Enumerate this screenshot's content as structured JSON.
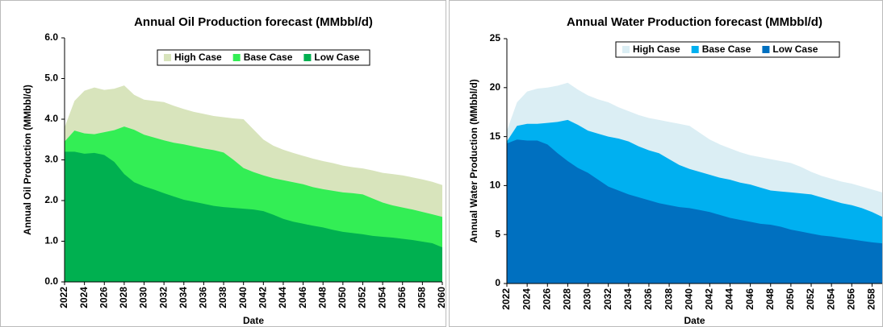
{
  "chart_data": [
    {
      "type": "area",
      "title": "Annual Oil Production forecast (MMbbl/d)",
      "x_label": "Date",
      "y_label": "Annual Oil Production (MMbbl/d)",
      "x": [
        2022,
        2023,
        2024,
        2025,
        2026,
        2027,
        2028,
        2029,
        2030,
        2031,
        2032,
        2033,
        2034,
        2035,
        2036,
        2037,
        2038,
        2039,
        2040,
        2041,
        2042,
        2043,
        2044,
        2045,
        2046,
        2047,
        2048,
        2049,
        2050,
        2051,
        2052,
        2053,
        2054,
        2055,
        2056,
        2057,
        2058,
        2059,
        2060
      ],
      "xlim": [
        2022,
        2060
      ],
      "xticks": [
        2022,
        2024,
        2026,
        2028,
        2030,
        2032,
        2034,
        2036,
        2038,
        2040,
        2042,
        2044,
        2046,
        2048,
        2050,
        2052,
        2054,
        2056,
        2058,
        2060
      ],
      "ylim": [
        0,
        6
      ],
      "yticks": [
        {
          "value": 0,
          "label": "0.0"
        },
        {
          "value": 1,
          "label": "1.0"
        },
        {
          "value": 2,
          "label": "2.0"
        },
        {
          "value": 3,
          "label": "3.0"
        },
        {
          "value": 4,
          "label": "4.0"
        },
        {
          "value": 5,
          "label": "5.0"
        },
        {
          "value": 6,
          "label": "6.0"
        }
      ],
      "legend": "top-right",
      "series": [
        {
          "name": "High Case",
          "color": "#d8e4bc",
          "values": [
            3.8,
            4.45,
            4.7,
            4.78,
            4.72,
            4.75,
            4.83,
            4.6,
            4.48,
            4.45,
            4.42,
            4.33,
            4.25,
            4.18,
            4.13,
            4.08,
            4.05,
            4.02,
            4.0,
            3.75,
            3.5,
            3.35,
            3.25,
            3.17,
            3.1,
            3.03,
            2.97,
            2.92,
            2.86,
            2.82,
            2.79,
            2.74,
            2.68,
            2.65,
            2.62,
            2.57,
            2.52,
            2.46,
            2.38
          ]
        },
        {
          "name": "Base Case",
          "color": "#33ee55",
          "values": [
            3.45,
            3.72,
            3.65,
            3.63,
            3.68,
            3.73,
            3.82,
            3.74,
            3.62,
            3.55,
            3.48,
            3.42,
            3.38,
            3.33,
            3.28,
            3.24,
            3.18,
            3.0,
            2.8,
            2.7,
            2.62,
            2.55,
            2.5,
            2.45,
            2.4,
            2.33,
            2.28,
            2.24,
            2.2,
            2.18,
            2.15,
            2.05,
            1.95,
            1.88,
            1.83,
            1.78,
            1.72,
            1.66,
            1.6
          ]
        },
        {
          "name": "Low Case",
          "color": "#00b050",
          "values": [
            3.2,
            3.2,
            3.15,
            3.17,
            3.12,
            2.95,
            2.65,
            2.45,
            2.35,
            2.27,
            2.18,
            2.1,
            2.02,
            1.97,
            1.92,
            1.87,
            1.84,
            1.82,
            1.8,
            1.78,
            1.74,
            1.65,
            1.55,
            1.48,
            1.43,
            1.38,
            1.34,
            1.28,
            1.23,
            1.2,
            1.17,
            1.13,
            1.11,
            1.09,
            1.06,
            1.03,
            0.99,
            0.95,
            0.85
          ]
        }
      ]
    },
    {
      "type": "area",
      "title": "Annual Water Production forecast (MMbbl/d)",
      "x_label": "Date",
      "y_label": "Annual Water Production (MMbbl/d)",
      "x": [
        2022,
        2023,
        2024,
        2025,
        2026,
        2027,
        2028,
        2029,
        2030,
        2031,
        2032,
        2033,
        2034,
        2035,
        2036,
        2037,
        2038,
        2039,
        2040,
        2041,
        2042,
        2043,
        2044,
        2045,
        2046,
        2047,
        2048,
        2049,
        2050,
        2051,
        2052,
        2053,
        2054,
        2055,
        2056,
        2057,
        2058,
        2059
      ],
      "xlim": [
        2022,
        2059
      ],
      "xticks": [
        2022,
        2024,
        2026,
        2028,
        2030,
        2032,
        2034,
        2036,
        2038,
        2040,
        2042,
        2044,
        2046,
        2048,
        2050,
        2052,
        2054,
        2056,
        2058
      ],
      "ylim": [
        0,
        25
      ],
      "yticks": [
        0,
        5,
        10,
        15,
        20,
        25
      ],
      "legend": "top-right",
      "series": [
        {
          "name": "High Case",
          "color": "#dbeef4",
          "values": [
            15.6,
            18.5,
            19.6,
            19.9,
            20.0,
            20.2,
            20.5,
            19.8,
            19.2,
            18.8,
            18.5,
            18.0,
            17.6,
            17.2,
            16.9,
            16.7,
            16.5,
            16.3,
            16.1,
            15.4,
            14.7,
            14.2,
            13.8,
            13.4,
            13.1,
            12.9,
            12.7,
            12.5,
            12.3,
            11.9,
            11.4,
            11.0,
            10.7,
            10.4,
            10.2,
            9.9,
            9.6,
            9.3
          ]
        },
        {
          "name": "Base Case",
          "color": "#00b0f0",
          "values": [
            14.5,
            16.1,
            16.3,
            16.3,
            16.4,
            16.5,
            16.7,
            16.2,
            15.6,
            15.3,
            15.0,
            14.8,
            14.5,
            14.0,
            13.6,
            13.3,
            12.7,
            12.1,
            11.7,
            11.4,
            11.1,
            10.8,
            10.6,
            10.3,
            10.1,
            9.8,
            9.5,
            9.4,
            9.3,
            9.2,
            9.1,
            8.8,
            8.5,
            8.2,
            8.0,
            7.7,
            7.3,
            6.8
          ]
        },
        {
          "name": "Low Case",
          "color": "#0070c0",
          "values": [
            14.3,
            14.7,
            14.6,
            14.6,
            14.2,
            13.3,
            12.5,
            11.8,
            11.3,
            10.6,
            9.9,
            9.5,
            9.1,
            8.8,
            8.5,
            8.2,
            8.0,
            7.8,
            7.7,
            7.5,
            7.3,
            7.0,
            6.7,
            6.5,
            6.3,
            6.1,
            6.0,
            5.8,
            5.5,
            5.3,
            5.1,
            4.9,
            4.8,
            4.65,
            4.5,
            4.35,
            4.2,
            4.1
          ]
        }
      ]
    }
  ]
}
